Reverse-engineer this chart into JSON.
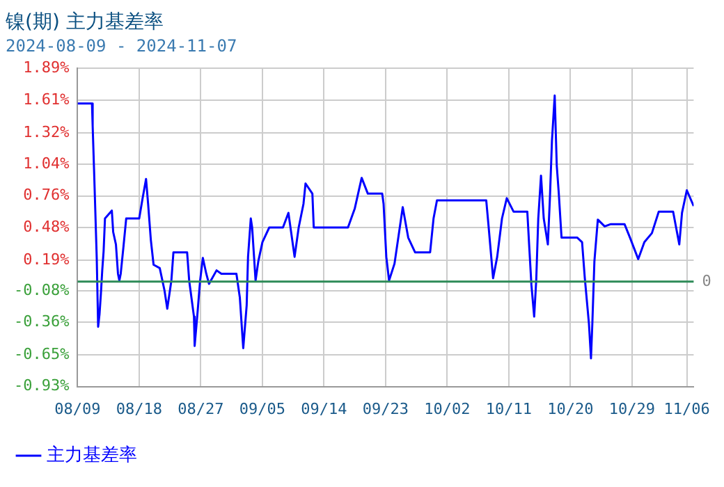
{
  "chart_data": {
    "type": "line",
    "title": "镍(期) 主力基差率",
    "subtitle": "2024-08-09 - 2024-11-07",
    "x": [
      "2024-08-09",
      "2024-08-11T02:24",
      "2024-08-11T04:48",
      "2024-08-11T09:36",
      "2024-08-11T14:24",
      "2024-08-11T19:12",
      "2024-08-12",
      "2024-08-12T04:48",
      "2024-08-12T09:36",
      "2024-08-12T14:24",
      "2024-08-12T19:12",
      "2024-08-13",
      "2024-08-14",
      "2024-08-14T04:48",
      "2024-08-14T14:24",
      "2024-08-14T21:36",
      "2024-08-15T02:24",
      "2024-08-15T07:12",
      "2024-08-15T16:48",
      "2024-08-16T02:24",
      "2024-08-18",
      "2024-08-18T12:00",
      "2024-08-19",
      "2024-08-19T07:12",
      "2024-08-19T16:48",
      "2024-08-20T02:24",
      "2024-08-21",
      "2024-08-21T16:48",
      "2024-08-22T02:24",
      "2024-08-22T16:48",
      "2024-08-23",
      "2024-08-25",
      "2024-08-25T07:12",
      "2024-08-26",
      "2024-08-26T02:24",
      "2024-08-26T12:00",
      "2024-08-26T21:36",
      "2024-08-27T07:12",
      "2024-08-27T19:12",
      "2024-08-28T04:48",
      "2024-08-29T07:12",
      "2024-08-30",
      "2024-09-01T04:48",
      "2024-09-01T16:48",
      "2024-09-02T04:48",
      "2024-09-02T16:48",
      "2024-09-02T21:36",
      "2024-09-03T07:12",
      "2024-09-03T12:00",
      "2024-09-04",
      "2024-09-04T09:36",
      "2024-09-05",
      "2024-09-06",
      "2024-09-08",
      "2024-09-08T19:12",
      "2024-09-09T16:48",
      "2024-09-10T07:12",
      "2024-09-11",
      "2024-09-11T07:12",
      "2024-09-12T07:12",
      "2024-09-12T12:00",
      "2024-09-13T07:12",
      "2024-09-17T12:00",
      "2024-09-18T12:00",
      "2024-09-19T12:00",
      "2024-09-20T09:36",
      "2024-09-22T12:00",
      "2024-09-22T16:48",
      "2024-09-23T02:24",
      "2024-09-23T12:00",
      "2024-09-24T07:12",
      "2024-09-25T12:00",
      "2024-09-26T07:12",
      "2024-09-27T07:12",
      "2024-09-29T12:00",
      "2024-09-30",
      "2024-09-30T12:00",
      "2024-10-07T16:48",
      "2024-10-08",
      "2024-10-08T16:48",
      "2024-10-09T07:12",
      "2024-10-10",
      "2024-10-10T16:48",
      "2024-10-11T16:48",
      "2024-10-13T16:48",
      "2024-10-14",
      "2024-10-14T07:12",
      "2024-10-14T16:48",
      "2024-10-15",
      "2024-10-15T07:12",
      "2024-10-15T16:48",
      "2024-10-16T02:24",
      "2024-10-16T16:48",
      "2024-10-17",
      "2024-10-17T07:12",
      "2024-10-17T16:48",
      "2024-10-18",
      "2024-10-18T07:12",
      "2024-10-18T16:48",
      "2024-10-21",
      "2024-10-21T16:48",
      "2024-10-22T02:24",
      "2024-10-22T16:48",
      "2024-10-23",
      "2024-10-23T04:48",
      "2024-10-23T12:00",
      "2024-10-24",
      "2024-10-25",
      "2024-10-25T21:36",
      "2024-10-27T21:36",
      "2024-10-28T16:48",
      "2024-10-29T21:36",
      "2024-10-30T19:12",
      "2024-10-31T21:36",
      "2024-11-01T21:36",
      "2024-11-04",
      "2024-11-04T21:36",
      "2024-11-05T07:12",
      "2024-11-06",
      "2024-11-07"
    ],
    "series": [
      {
        "name": "主力基差率",
        "color": "#0000ff",
        "values": [
          1.58,
          1.58,
          1.38,
          1.0,
          0.6,
          0.2,
          -0.4,
          -0.29,
          -0.11,
          0.1,
          0.27,
          0.56,
          0.63,
          0.44,
          0.33,
          0.07,
          0.01,
          0.07,
          0.31,
          0.56,
          0.56,
          0.74,
          0.91,
          0.69,
          0.37,
          0.15,
          0.12,
          -0.08,
          -0.24,
          0.01,
          0.26,
          0.26,
          0.01,
          -0.31,
          -0.57,
          -0.29,
          0.01,
          0.21,
          0.07,
          -0.02,
          0.1,
          0.07,
          0.07,
          -0.14,
          -0.59,
          -0.21,
          0.22,
          0.56,
          0.48,
          0.01,
          0.18,
          0.35,
          0.48,
          0.48,
          0.61,
          0.22,
          0.48,
          0.69,
          0.87,
          0.78,
          0.48,
          0.48,
          0.48,
          0.65,
          0.92,
          0.78,
          0.78,
          0.69,
          0.22,
          0.01,
          0.16,
          0.66,
          0.39,
          0.26,
          0.26,
          0.56,
          0.72,
          0.72,
          0.52,
          0.03,
          0.22,
          0.56,
          0.74,
          0.62,
          0.62,
          0.29,
          -0.03,
          -0.31,
          0.01,
          0.56,
          0.94,
          0.56,
          0.33,
          0.74,
          1.25,
          1.65,
          1.03,
          0.78,
          0.39,
          0.39,
          0.35,
          0.03,
          -0.37,
          -0.68,
          -0.37,
          0.18,
          0.55,
          0.49,
          0.51,
          0.51,
          0.39,
          0.2,
          0.35,
          0.43,
          0.62,
          0.62,
          0.33,
          0.61,
          0.81,
          0.67
        ]
      }
    ],
    "xlim": [
      "2024-08-09",
      "2024-11-07"
    ],
    "xticks": [
      {
        "value": "2024-08-09",
        "label": "08/09"
      },
      {
        "value": "2024-08-18",
        "label": "08/18"
      },
      {
        "value": "2024-08-27",
        "label": "08/27"
      },
      {
        "value": "2024-09-05",
        "label": "09/05"
      },
      {
        "value": "2024-09-14",
        "label": "09/14"
      },
      {
        "value": "2024-09-23",
        "label": "09/23"
      },
      {
        "value": "2024-10-02",
        "label": "10/02"
      },
      {
        "value": "2024-10-11",
        "label": "10/11"
      },
      {
        "value": "2024-10-20",
        "label": "10/20"
      },
      {
        "value": "2024-10-29",
        "label": "10/29"
      },
      {
        "value": "2024-11-06",
        "label": "11/06"
      }
    ],
    "ylim": [
      -0.93,
      1.89
    ],
    "yticks": [
      {
        "value": -0.93,
        "label": "-0.93%"
      },
      {
        "value": -0.65,
        "label": "-0.65%"
      },
      {
        "value": -0.36,
        "label": "-0.36%"
      },
      {
        "value": -0.08,
        "label": "-0.08%"
      },
      {
        "value": 0.19,
        "label": "0.19%"
      },
      {
        "value": 0.48,
        "label": "0.48%"
      },
      {
        "value": 0.76,
        "label": "0.76%"
      },
      {
        "value": 1.04,
        "label": "1.04%"
      },
      {
        "value": 1.32,
        "label": "1.32%"
      },
      {
        "value": 1.61,
        "label": "1.61%"
      },
      {
        "value": 1.89,
        "label": "1.89%"
      }
    ],
    "ref_lines": [
      {
        "axis": "y",
        "value": 0,
        "label": "0",
        "color": "#2e8b57"
      }
    ],
    "grid": true,
    "legend": "bottom left",
    "marker": "none",
    "line_style": "solid"
  }
}
